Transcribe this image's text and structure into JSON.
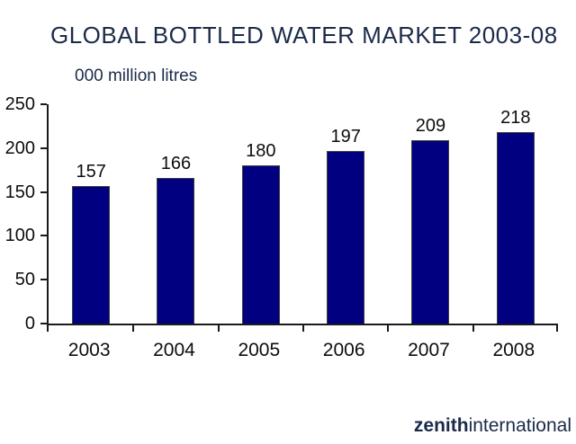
{
  "chart_data": {
    "type": "bar",
    "title": "GLOBAL BOTTLED WATER MARKET 2003-08",
    "units_label": "000 million litres",
    "categories": [
      "2003",
      "2004",
      "2005",
      "2006",
      "2007",
      "2008"
    ],
    "values": [
      157,
      166,
      180,
      197,
      209,
      218
    ],
    "xlabel": "",
    "ylabel": "000 million litres",
    "ylim": [
      0,
      250
    ],
    "yticks": [
      0,
      50,
      100,
      150,
      200,
      250
    ],
    "grid": false,
    "legend": false,
    "bar_color": "#000080"
  },
  "logo": {
    "bold": "zenith",
    "regular": "international"
  },
  "colors": {
    "bar": "#000080",
    "bar_outline": "#3f3f3f",
    "axis": "#1a1a1a",
    "heading_text": "#1b2b4b",
    "label_text": "#0d0d0d"
  }
}
